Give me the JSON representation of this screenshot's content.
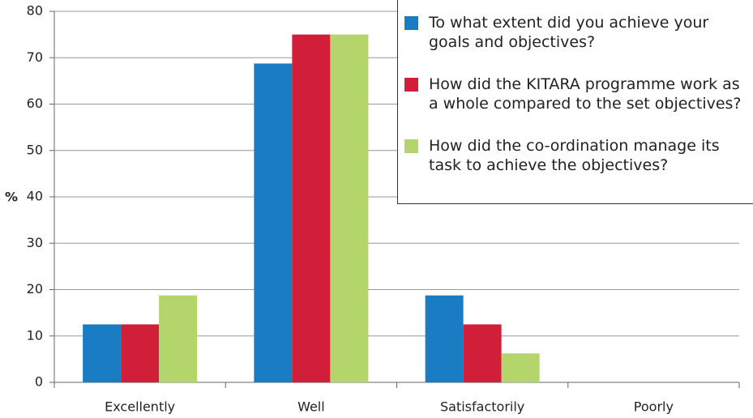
{
  "chart_data": {
    "type": "bar",
    "categories": [
      "Excellently",
      "Well",
      "Satisfactorily",
      "Poorly"
    ],
    "series": [
      {
        "name": "To what extent did you achieve your goals and objectives?",
        "color": "#1a7dc4",
        "values": [
          12.5,
          68.75,
          18.75,
          0
        ]
      },
      {
        "name": "How did the KITARA programme work as a whole compared to the set objectives?",
        "color": "#d11f3a",
        "values": [
          12.5,
          75,
          12.5,
          0
        ]
      },
      {
        "name": "How did the co-ordination manage its task to achieve the objectives?",
        "color": "#b4d46c",
        "values": [
          18.75,
          75,
          6.25,
          0
        ]
      }
    ],
    "ylabel": "%",
    "ylim": [
      0,
      80
    ],
    "yticks": [
      0,
      10,
      20,
      30,
      40,
      50,
      60,
      70,
      80
    ],
    "grid": true,
    "legend": "upper right"
  }
}
